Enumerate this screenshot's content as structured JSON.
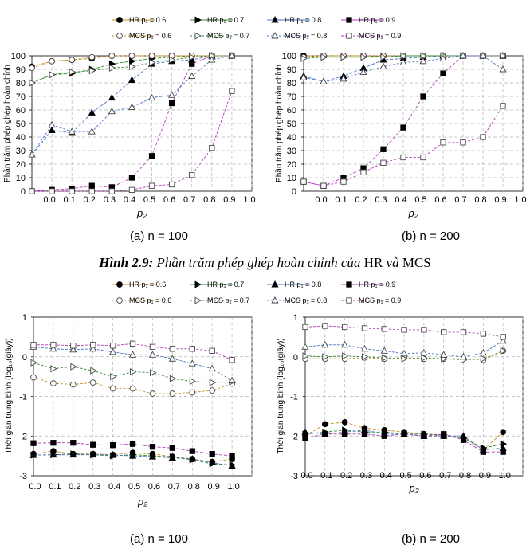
{
  "figure_caption": {
    "label": "Hình 2.9:",
    "text_before": "Phần trăm phép ghép hoàn chỉnh của",
    "hr": "HR",
    "and": "và",
    "mcs": "MCS"
  },
  "legend_labels": {
    "hr_06": "HR  p₁ = 0.6",
    "hr_07": "HR  p₁ = 0.7",
    "hr_08": "HR  p₁ = 0.8",
    "hr_09": "HR p₁ = 0.9",
    "mcs_06": "MCS  p₁ = 0.6",
    "mcs_07": "MCS  p₁ = 0.7",
    "mcs_08": "MCS  p₁ = 0.8",
    "mcs_09": "MCS p₁ = 0.9"
  },
  "colors": {
    "p06": "#c8902a",
    "p07": "#2e8b2e",
    "p08": "#4a74c9",
    "p09": "#b03ab8"
  },
  "chart_data": [
    {
      "type": "line",
      "id": "pct_n100",
      "subcaption": "(a) n = 100",
      "xlabel": "p₂",
      "ylabel": "Phần trăm phép ghép hoàn chỉnh",
      "xticks": [
        "0.0",
        "0.1",
        "0.2",
        "0.3",
        "0.4",
        "0.5",
        "0.6",
        "0.7",
        "0.8",
        "0.9",
        "1.0"
      ],
      "yticks": [
        "0",
        "10",
        "20",
        "30",
        "40",
        "50",
        "60",
        "70",
        "80",
        "90",
        "100"
      ],
      "ylim": [
        0,
        100
      ],
      "series": [
        {
          "name": "HR p1=0.6",
          "algo": "HR",
          "p1": "0.6",
          "values": [
            92,
            96,
            97,
            98,
            100,
            100,
            100,
            100,
            100,
            100,
            100
          ]
        },
        {
          "name": "HR p1=0.7",
          "algo": "HR",
          "p1": "0.7",
          "values": [
            80,
            86,
            87,
            90,
            94,
            96,
            98,
            99,
            100,
            100,
            100
          ]
        },
        {
          "name": "HR p1=0.8",
          "algo": "HR",
          "p1": "0.8",
          "values": [
            27,
            45,
            43,
            58,
            69,
            82,
            94,
            96,
            97,
            100,
            100
          ]
        },
        {
          "name": "HR p1=0.9",
          "algo": "HR",
          "p1": "0.9",
          "values": [
            0,
            1,
            2,
            4,
            3,
            10,
            26,
            65,
            94,
            100,
            100
          ]
        },
        {
          "name": "MCS p1=0.6",
          "algo": "MCS",
          "p1": "0.6",
          "values": [
            91,
            96,
            97,
            99,
            100,
            100,
            100,
            100,
            100,
            100,
            100
          ]
        },
        {
          "name": "MCS p1=0.7",
          "algo": "MCS",
          "p1": "0.7",
          "values": [
            80,
            86,
            88,
            89,
            91,
            92,
            95,
            97,
            99,
            100,
            100
          ]
        },
        {
          "name": "MCS p1=0.8",
          "algo": "MCS",
          "p1": "0.8",
          "values": [
            27,
            49,
            44,
            44,
            59,
            62,
            69,
            71,
            85,
            97,
            100
          ]
        },
        {
          "name": "MCS p1=0.9",
          "algo": "MCS",
          "p1": "0.9",
          "values": [
            0,
            0,
            0,
            0,
            0,
            1,
            4,
            5,
            12,
            32,
            74
          ]
        }
      ]
    },
    {
      "type": "line",
      "id": "pct_n200",
      "subcaption": "(b) n = 200",
      "xlabel": "p₂",
      "ylabel": "Phần trăm phép ghép hoàn chỉnh",
      "xticks": [
        "0.0",
        "0.1",
        "0.2",
        "0.3",
        "0.4",
        "0.5",
        "0.6",
        "0.7",
        "0.8",
        "0.9",
        "1.0"
      ],
      "yticks": [
        "0",
        "10",
        "20",
        "30",
        "40",
        "50",
        "60",
        "70",
        "80",
        "90",
        "100"
      ],
      "ylim": [
        0,
        100
      ],
      "series": [
        {
          "name": "HR p1=0.6",
          "algo": "HR",
          "p1": "0.6",
          "values": [
            100,
            100,
            100,
            100,
            100,
            100,
            100,
            100,
            100,
            100,
            100
          ]
        },
        {
          "name": "HR p1=0.7",
          "algo": "HR",
          "p1": "0.7",
          "values": [
            99,
            99,
            99,
            99,
            100,
            100,
            100,
            100,
            100,
            100,
            100
          ]
        },
        {
          "name": "HR p1=0.8",
          "algo": "HR",
          "p1": "0.8",
          "values": [
            85,
            81,
            85,
            91,
            97,
            98,
            99,
            100,
            100,
            100,
            100
          ]
        },
        {
          "name": "HR p1=0.9",
          "algo": "HR",
          "p1": "0.9",
          "values": [
            7,
            4,
            10,
            17,
            31,
            47,
            70,
            87,
            100,
            100,
            100
          ]
        },
        {
          "name": "MCS p1=0.6",
          "algo": "MCS",
          "p1": "0.6",
          "values": [
            99,
            100,
            100,
            100,
            100,
            100,
            100,
            100,
            100,
            100,
            100
          ]
        },
        {
          "name": "MCS p1=0.7",
          "algo": "MCS",
          "p1": "0.7",
          "values": [
            98,
            99,
            99,
            99,
            99,
            100,
            100,
            100,
            100,
            100,
            100
          ]
        },
        {
          "name": "MCS p1=0.8",
          "algo": "MCS",
          "p1": "0.8",
          "values": [
            84,
            81,
            83,
            88,
            92,
            95,
            96,
            98,
            100,
            100,
            90
          ]
        },
        {
          "name": "MCS p1=0.9",
          "algo": "MCS",
          "p1": "0.9",
          "values": [
            7,
            4,
            7,
            14,
            21,
            25,
            25,
            36,
            36,
            40,
            63
          ]
        }
      ]
    },
    {
      "type": "line",
      "id": "time_n100",
      "subcaption": "(a) n = 100",
      "xlabel": "p₂",
      "ylabel": "Thời gian trung bình (log₁₀(giây))",
      "xticks": [
        "0.0",
        "0.1",
        "0.2",
        "0.3",
        "0.4",
        "0.5",
        "0.6",
        "0.7",
        "0.8",
        "0.9",
        "1.0"
      ],
      "yticks": [
        "-3",
        "-2",
        "-1",
        "0",
        "1"
      ],
      "ylim": [
        -3,
        1
      ],
      "series": [
        {
          "name": "HR p1=0.6",
          "algo": "HR",
          "p1": "0.6",
          "values": [
            -2.45,
            -2.38,
            -2.45,
            -2.45,
            -2.47,
            -2.42,
            -2.45,
            -2.52,
            -2.58,
            -2.65,
            -2.58
          ]
        },
        {
          "name": "HR p1=0.7",
          "algo": "HR",
          "p1": "0.7",
          "values": [
            -2.48,
            -2.47,
            -2.45,
            -2.47,
            -2.5,
            -2.47,
            -2.5,
            -2.53,
            -2.6,
            -2.7,
            -2.73
          ]
        },
        {
          "name": "HR p1=0.8",
          "algo": "HR",
          "p1": "0.8",
          "values": [
            -2.48,
            -2.47,
            -2.47,
            -2.47,
            -2.48,
            -2.5,
            -2.52,
            -2.55,
            -2.58,
            -2.67,
            -2.75
          ]
        },
        {
          "name": "HR p1=0.9",
          "algo": "HR",
          "p1": "0.9",
          "values": [
            -2.18,
            -2.17,
            -2.17,
            -2.22,
            -2.23,
            -2.2,
            -2.27,
            -2.3,
            -2.38,
            -2.45,
            -2.5
          ]
        },
        {
          "name": "MCS p1=0.6",
          "algo": "MCS",
          "p1": "0.6",
          "values": [
            -0.52,
            -0.67,
            -0.7,
            -0.65,
            -0.8,
            -0.8,
            -0.93,
            -0.93,
            -0.9,
            -0.85,
            -0.68
          ]
        },
        {
          "name": "MCS p1=0.7",
          "algo": "MCS",
          "p1": "0.7",
          "values": [
            -0.15,
            -0.3,
            -0.25,
            -0.35,
            -0.5,
            -0.38,
            -0.4,
            -0.55,
            -0.62,
            -0.65,
            -0.63
          ]
        },
        {
          "name": "MCS p1=0.8",
          "algo": "MCS",
          "p1": "0.8",
          "values": [
            0.25,
            0.2,
            0.18,
            0.2,
            0.12,
            0.05,
            0.05,
            -0.05,
            -0.17,
            -0.3,
            -0.6
          ]
        },
        {
          "name": "MCS p1=0.9",
          "algo": "MCS",
          "p1": "0.9",
          "values": [
            0.3,
            0.3,
            0.28,
            0.3,
            0.28,
            0.33,
            0.25,
            0.2,
            0.2,
            0.15,
            -0.08
          ]
        }
      ]
    },
    {
      "type": "line",
      "id": "time_n200",
      "subcaption": "(b) n = 200",
      "xlabel": "p₂",
      "ylabel": "Thời gian trung bình (log₁₀(giây))",
      "xticks": [
        "0.0",
        "0.1",
        "0.2",
        "0.3",
        "0.4",
        "0.5",
        "0.6",
        "0.7",
        "0.8",
        "0.9",
        "1.0"
      ],
      "yticks": [
        "-3",
        "-2",
        "-1",
        "0",
        "1"
      ],
      "ylim": [
        -3,
        1
      ],
      "series": [
        {
          "name": "HR p1=0.6",
          "algo": "HR",
          "p1": "0.6",
          "values": [
            -2.0,
            -1.7,
            -1.65,
            -1.8,
            -1.85,
            -1.9,
            -1.95,
            -2.0,
            -2.05,
            -2.35,
            -1.9
          ]
        },
        {
          "name": "HR p1=0.7",
          "algo": "HR",
          "p1": "0.7",
          "values": [
            -1.95,
            -1.9,
            -1.85,
            -1.9,
            -1.9,
            -1.95,
            -1.95,
            -1.97,
            -2.05,
            -2.3,
            -2.2
          ]
        },
        {
          "name": "HR p1=0.8",
          "algo": "HR",
          "p1": "0.8",
          "values": [
            -1.9,
            -1.95,
            -1.9,
            -1.85,
            -1.95,
            -1.95,
            -2.0,
            -2.0,
            -2.0,
            -2.35,
            -2.3
          ]
        },
        {
          "name": "HR p1=0.9",
          "algo": "HR",
          "p1": "0.9",
          "values": [
            -2.05,
            -1.95,
            -1.95,
            -1.95,
            -2.0,
            -1.95,
            -2.0,
            -1.95,
            -2.1,
            -2.4,
            -2.4
          ]
        },
        {
          "name": "MCS p1=0.6",
          "algo": "MCS",
          "p1": "0.6",
          "values": [
            -0.05,
            -0.05,
            -0.05,
            -0.02,
            -0.05,
            -0.02,
            -0.05,
            -0.05,
            -0.05,
            -0.08,
            0.15
          ]
        },
        {
          "name": "MCS p1=0.7",
          "algo": "MCS",
          "p1": "0.7",
          "values": [
            0.02,
            0.0,
            0.02,
            0.0,
            -0.03,
            -0.05,
            -0.03,
            -0.05,
            -0.08,
            -0.05,
            0.15
          ]
        },
        {
          "name": "MCS p1=0.8",
          "algo": "MCS",
          "p1": "0.8",
          "values": [
            0.25,
            0.3,
            0.3,
            0.2,
            0.15,
            0.08,
            0.1,
            0.05,
            0.0,
            0.1,
            0.4
          ]
        },
        {
          "name": "MCS p1=0.9",
          "algo": "MCS",
          "p1": "0.9",
          "values": [
            0.75,
            0.78,
            0.75,
            0.72,
            0.7,
            0.68,
            0.68,
            0.62,
            0.62,
            0.58,
            0.5
          ]
        }
      ]
    }
  ]
}
